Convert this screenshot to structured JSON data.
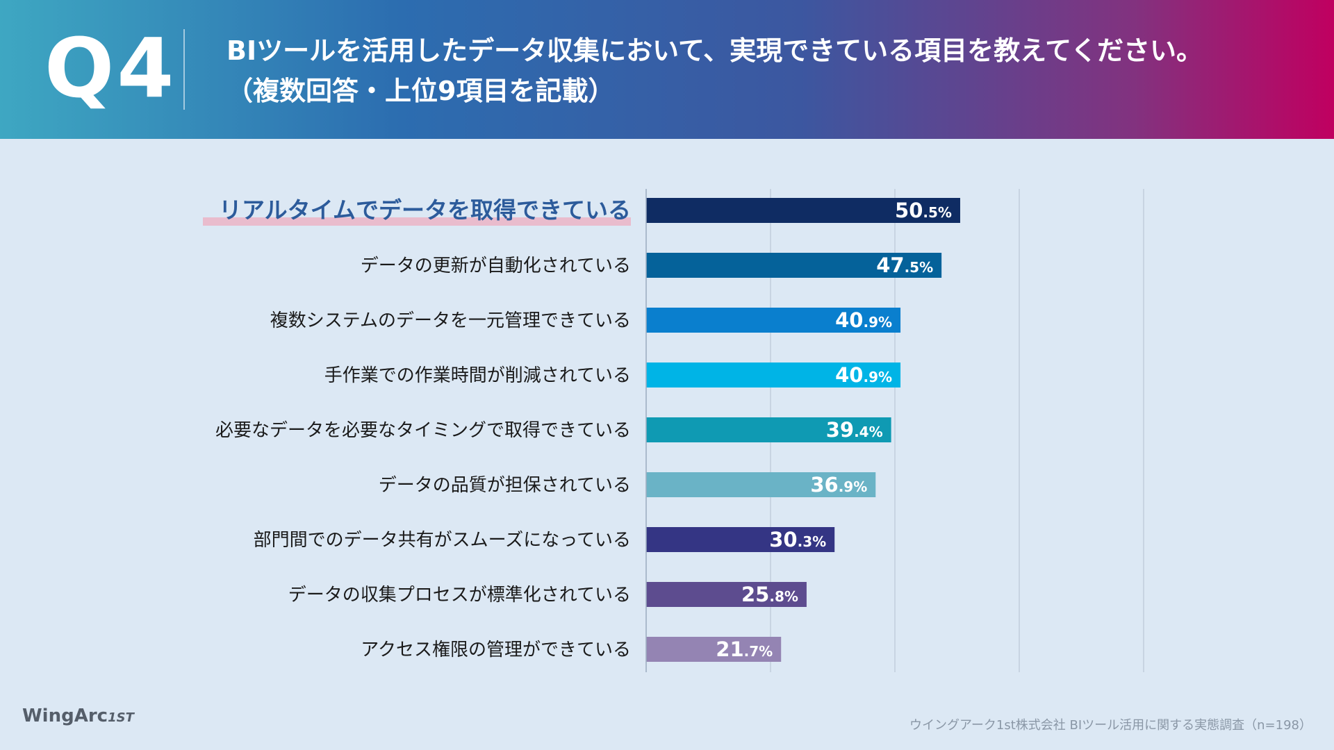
{
  "header": {
    "qnum": "Q4",
    "line1": "BIツールを活用したデータ収集において、実現できている項目を教えてください。",
    "line2": "（複数回答・上位9項目を記載）"
  },
  "chart_data": {
    "type": "bar",
    "orientation": "horizontal",
    "title": "BIツールを活用したデータ収集において、実現できている項目を教えてください。",
    "xlim": [
      0,
      80
    ],
    "grid": true,
    "categories": [
      "リアルタイムでデータを取得できている",
      "データの更新が自動化されている",
      "複数システムのデータを一元管理できている",
      "手作業での作業時間が削減されている",
      "必要なデータを必要なタイミングで取得できている",
      "データの品質が担保されている",
      "部門間でのデータ共有がスムーズになっている",
      "データの収集プロセスが標準化されている",
      "アクセス権限の管理ができている"
    ],
    "values": [
      50.5,
      47.5,
      40.9,
      40.9,
      39.4,
      36.9,
      30.3,
      25.8,
      21.7
    ],
    "colors": [
      "#0f2c63",
      "#05629a",
      "#0a7fce",
      "#00b4e6",
      "#0f9ab3",
      "#6ab3c6",
      "#343584",
      "#5d4c8f",
      "#9484b3"
    ],
    "highlight_color": "#2c5b9b",
    "label_color": "#1a1a1a",
    "value_color": "#ffffff"
  },
  "footer": {
    "logo_main": "WingArc",
    "logo_sup": "1ST",
    "source": "ウイングアーク1st株式会社 BIツール活用に関する実態調査（n=198）"
  }
}
